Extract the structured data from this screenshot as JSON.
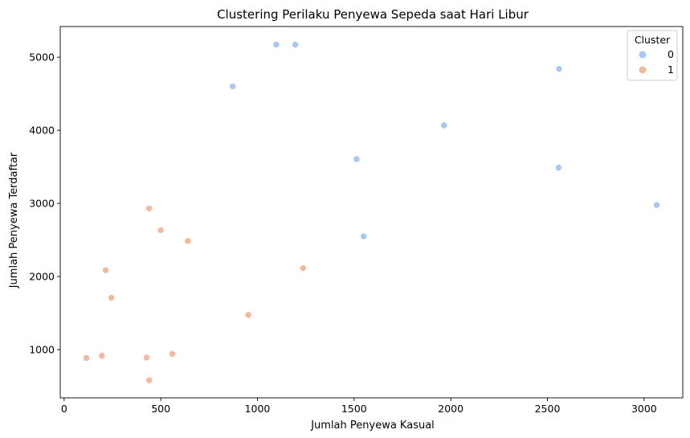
{
  "chart_data": {
    "type": "scatter",
    "title": "Clustering Perilaku Penyewa Sepeda saat Hari Libur",
    "xlabel": "Jumlah Penyewa Kasual",
    "ylabel": "Jumlah Penyewa Terdaftar",
    "xlim": [
      -20,
      3200
    ],
    "ylim": [
      340,
      5420
    ],
    "xticks": [
      0,
      500,
      1000,
      1500,
      2000,
      2500,
      3000
    ],
    "xtick_labels": [
      "0",
      "500",
      "1000",
      "1500",
      "2000",
      "2500",
      "3000"
    ],
    "yticks": [
      1000,
      2000,
      3000,
      4000,
      5000
    ],
    "ytick_labels": [
      "1000",
      "2000",
      "3000",
      "4000",
      "5000"
    ],
    "grid": false,
    "legend": {
      "title": "Cluster",
      "position": "top-right"
    },
    "series": [
      {
        "name": "0",
        "color": "#a8c6f7",
        "points": [
          [
            1097,
            5172
          ],
          [
            1196,
            5172
          ],
          [
            2560,
            4841
          ],
          [
            872,
            4602
          ],
          [
            1965,
            4069
          ],
          [
            1513,
            3606
          ],
          [
            2558,
            3489
          ],
          [
            3065,
            2978
          ],
          [
            1549,
            2549
          ]
        ]
      },
      {
        "name": "1",
        "color": "#f3b99c",
        "points": [
          [
            440,
            2932
          ],
          [
            500,
            2634
          ],
          [
            640,
            2486
          ],
          [
            1236,
            2115
          ],
          [
            215,
            2085
          ],
          [
            245,
            1709
          ],
          [
            953,
            1474
          ],
          [
            560,
            940
          ],
          [
            195,
            916
          ],
          [
            427,
            890
          ],
          [
            115,
            884
          ],
          [
            440,
            580
          ]
        ]
      }
    ]
  }
}
